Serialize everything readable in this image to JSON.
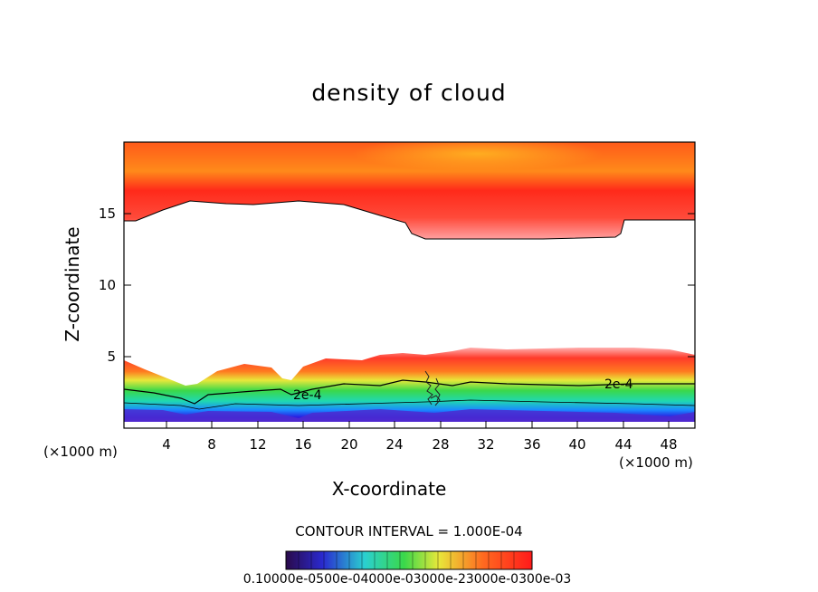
{
  "chart_data": {
    "type": "heatmap",
    "title": "density of cloud",
    "xlabel": "X-coordinate",
    "ylabel": "Z-coordinate",
    "x_unit_left": "(×1000 m)",
    "x_unit_right": "(×1000 m)",
    "xlim": [
      0,
      50
    ],
    "ylim": [
      0,
      20
    ],
    "x_ticks": [
      "4",
      "8",
      "12",
      "16",
      "20",
      "24",
      "28",
      "32",
      "36",
      "40",
      "44",
      "48"
    ],
    "y_ticks": [
      "5",
      "10",
      "15"
    ],
    "contour_interval_text": "CONTOUR INTERVAL = 1.000E-04",
    "contour_labels": [
      "2e-4",
      "2e-4"
    ],
    "colorbar_labels_text": "0.10000e-0500e-04000e-03000e-23000e-0300e-03",
    "colors": {
      "upper_layer": "#ff3a1e",
      "lower_layer": "#3ecf3a",
      "base": "#4b2bd0"
    }
  }
}
